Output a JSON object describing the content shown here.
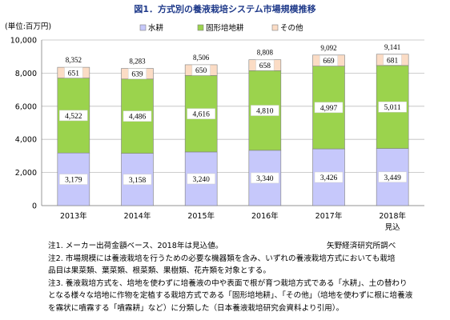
{
  "chart_data": {
    "type": "bar",
    "stacked": true,
    "title": "図1．方式別の養液栽培システム市場規模推移",
    "ylabel": "(単位:百万円)",
    "ylim": [
      0,
      10000
    ],
    "yticks": [
      "0",
      "2,000",
      "4,000",
      "6,000",
      "8,000",
      "10,000"
    ],
    "ytick_values": [
      0,
      2000,
      4000,
      6000,
      8000,
      10000
    ],
    "grid": true,
    "legend_position": "top",
    "categories": [
      "2013年",
      "2014年",
      "2015年",
      "2016年",
      "2017年",
      "2018年"
    ],
    "category_sublabels": [
      "",
      "",
      "",
      "",
      "",
      "見込"
    ],
    "series": [
      {
        "name": "水耕",
        "color": "#c6c8fb",
        "values": [
          3179,
          3158,
          3240,
          3340,
          3426,
          3449
        ],
        "labels": [
          "3,179",
          "3,158",
          "3,240",
          "3,340",
          "3,426",
          "3,449"
        ]
      },
      {
        "name": "固形培地耕",
        "color": "#9bd34d",
        "values": [
          4522,
          4486,
          4616,
          4810,
          4997,
          5011
        ],
        "labels": [
          "4,522",
          "4,486",
          "4,616",
          "4,810",
          "4,997",
          "5,011"
        ]
      },
      {
        "name": "その他",
        "color": "#fbdcc5",
        "values": [
          651,
          639,
          650,
          658,
          669,
          681
        ],
        "labels": [
          "651",
          "639",
          "650",
          "658",
          "669",
          "681"
        ]
      }
    ],
    "totals": [
      8352,
      8283,
      8506,
      8808,
      9092,
      9141
    ],
    "total_labels": [
      "8,352",
      "8,283",
      "8,506",
      "8,808",
      "9,092",
      "9,141"
    ]
  },
  "notes": {
    "line1": "注1. メーカー出荷金額ベース、2018年は見込値。",
    "source": "矢野経済研究所調べ",
    "line2": "注2. 市場規模には養液栽培を行うための必要な機器類を含み、いずれの養液栽培方式においても栽培",
    "line3": "品目は果菜類、葉菜類、根菜類、果樹類、花卉類を対象とする。",
    "line4": "注3. 養液栽培方式を、培地を使わずに培養液の中や表面で根が育つ栽培方式である「水耕」、土の替わり",
    "line5": "となる様々な培地に作物を定植する栽培方式である「固形培地耕」、「その他」（培地を使わずに根に培養液",
    "line6": "を霧状に噴霧する「噴霧耕」など）に分類した（日本養液栽培研究会資料より引用）。"
  }
}
